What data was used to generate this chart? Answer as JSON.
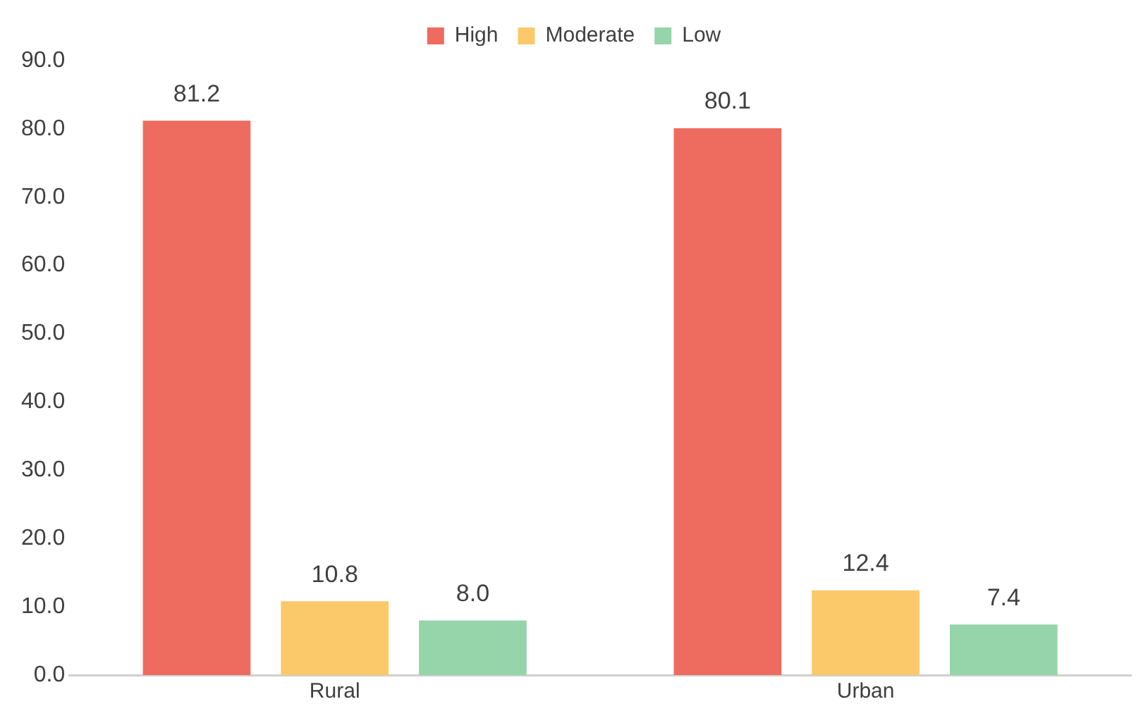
{
  "chart_data": {
    "type": "bar",
    "categories": [
      "Rural",
      "Urban"
    ],
    "series": [
      {
        "name": "High",
        "color": "#ee6b5f",
        "values": [
          81.2,
          80.1
        ],
        "value_labels": [
          "81.2",
          "80.1"
        ]
      },
      {
        "name": "Moderate",
        "color": "#fbc86a",
        "values": [
          10.8,
          12.4
        ],
        "value_labels": [
          "10.8",
          "12.4"
        ]
      },
      {
        "name": "Low",
        "color": "#96d4a9",
        "values": [
          8.0,
          7.4
        ],
        "value_labels": [
          "8.0",
          "7.4"
        ]
      }
    ],
    "ylim": [
      0,
      90
    ],
    "yticks": [
      {
        "value": 0,
        "label": "0.0"
      },
      {
        "value": 10,
        "label": "10.0"
      },
      {
        "value": 20,
        "label": "20.0"
      },
      {
        "value": 30,
        "label": "30.0"
      },
      {
        "value": 40,
        "label": "40.0"
      },
      {
        "value": 50,
        "label": "50.0"
      },
      {
        "value": 60,
        "label": "60.0"
      },
      {
        "value": 70,
        "label": "70.0"
      },
      {
        "value": 80,
        "label": "80.0"
      },
      {
        "value": 90,
        "label": "90.0"
      }
    ],
    "grid": false,
    "legend": "top"
  }
}
